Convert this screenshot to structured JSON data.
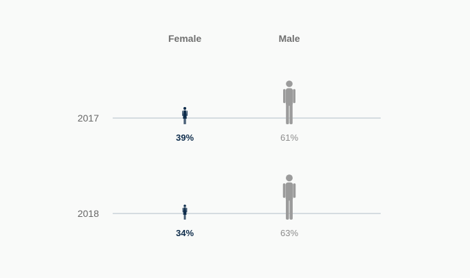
{
  "chart_data": {
    "type": "pictograph",
    "categories": [
      "2017",
      "2018"
    ],
    "series": [
      {
        "name": "Female",
        "values": [
          39,
          34
        ],
        "labels": [
          "39%",
          "34%"
        ],
        "color": "#0f2d4c",
        "icon": "female-person-icon"
      },
      {
        "name": "Male",
        "values": [
          61,
          63
        ],
        "labels": [
          "61%",
          "63%"
        ],
        "color": "#9b9b9b",
        "icon": "male-person-icon"
      }
    ],
    "title": "",
    "xlabel": "",
    "ylabel": "",
    "unit": "%",
    "baseline_color": "#c9d2d8",
    "grid": false
  }
}
